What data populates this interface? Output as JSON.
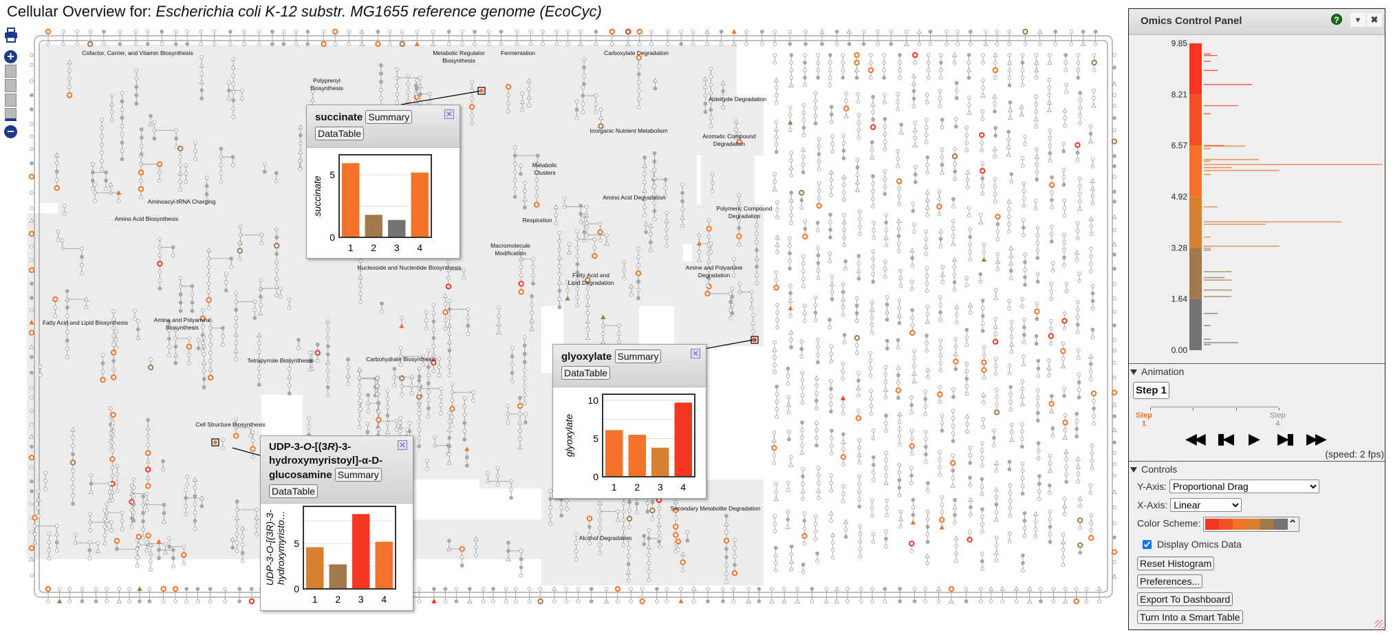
{
  "title": {
    "prefix": "Cellular Overview for: ",
    "organism": "Escherichia coli K-12 substr. MG1655 reference genome (EcoCyc)"
  },
  "zoom_controls": {
    "print_icon": "printer-icon",
    "zoom_in": "+",
    "zoom_out": "−"
  },
  "map": {
    "region_labels": [
      {
        "lines": [
          "Cofactor, Carrier, and Vitamin Biosynthesis"
        ]
      },
      {
        "lines": [
          "Metabolic Regulator",
          "Biosynthesis"
        ]
      },
      {
        "lines": [
          "Polyprenyl",
          "Biosynthesis"
        ]
      },
      {
        "lines": [
          "Fermentation"
        ]
      },
      {
        "lines": [
          "Carboxylate Degradation"
        ]
      },
      {
        "lines": [
          "Aldehyde Degradation"
        ]
      },
      {
        "lines": [
          "Inorganic Nutrient Metabolism"
        ]
      },
      {
        "lines": [
          "Aromatic Compound",
          "Degradation"
        ]
      },
      {
        "lines": [
          "Metabolic",
          "Clusters"
        ]
      },
      {
        "lines": [
          "Aminoacyl-tRNA Charging"
        ]
      },
      {
        "lines": [
          "Amino Acid Biosynthesis"
        ]
      },
      {
        "lines": [
          "Respiration"
        ]
      },
      {
        "lines": [
          "Amino Acid Degradation"
        ]
      },
      {
        "lines": [
          "Polymeric Compound",
          "Degradation"
        ]
      },
      {
        "lines": [
          "Macromolecule",
          "Modification"
        ]
      },
      {
        "lines": [
          "Fatty Acid and",
          "Lipid Degradation"
        ]
      },
      {
        "lines": [
          "Amine and Polyamine",
          "Degradation"
        ]
      },
      {
        "lines": [
          "Amine and Polyamine",
          "Biosynthesis"
        ]
      },
      {
        "lines": [
          "Fatty Acid and Lipid Biosynthesis"
        ]
      },
      {
        "lines": [
          "Tetrapyrrole Biosynthesis"
        ]
      },
      {
        "lines": [
          "Carbohydrate Biosynthesis"
        ]
      },
      {
        "lines": [
          "Cell Structure Biosynthesis"
        ]
      },
      {
        "lines": [
          "Alcohol Degradation"
        ]
      },
      {
        "lines": [
          "Nucleoside and Nucleotide Biosynthesis"
        ]
      },
      {
        "lines": [
          "Secondary Metabolite Degradation"
        ]
      }
    ]
  },
  "popups": [
    {
      "id": "succinate",
      "name": "succinate",
      "summary_label": "Summary",
      "datatable_label": "DataTable",
      "close_icon": "close-icon",
      "chart": {
        "type": "bar",
        "ylabel": "succinate",
        "categories": [
          "1",
          "2",
          "3",
          "4"
        ],
        "values": [
          5.93,
          1.8,
          1.39,
          5.18
        ],
        "ylim": [
          0,
          6.6
        ],
        "yticks": [
          0,
          5
        ],
        "grid": [
          2.5,
          5
        ]
      }
    },
    {
      "id": "glyoxylate",
      "name": "glyoxylate",
      "summary_label": "Summary",
      "datatable_label": "DataTable",
      "close_icon": "close-icon",
      "chart": {
        "type": "bar",
        "ylabel": "glyoxylate",
        "categories": [
          "1",
          "2",
          "3",
          "4"
        ],
        "values": [
          6.1,
          5.5,
          3.8,
          9.7
        ],
        "ylim": [
          0,
          10.8
        ],
        "yticks": [
          0,
          5,
          10
        ],
        "grid": [
          2.5,
          5,
          7.5,
          10
        ]
      }
    },
    {
      "id": "udp",
      "name_parts": [
        "UDP-3-",
        "O",
        "-[(3",
        "R",
        ")-3-hydroxymyristoyl]-α-D-glucosamine"
      ],
      "summary_label": "Summary",
      "datatable_label": "DataTable",
      "close_icon": "close-icon",
      "chart": {
        "type": "bar",
        "ylabel_lines": [
          "UDP-3-O-[(3R)-3-",
          "hydroxymyristo…"
        ],
        "categories": [
          "1",
          "2",
          "3",
          "4"
        ],
        "values": [
          4.6,
          2.7,
          8.25,
          5.2
        ],
        "ylim": [
          0,
          9.1
        ],
        "yticks": [
          0,
          5
        ],
        "grid": [
          2.5,
          5,
          7.5
        ]
      }
    }
  ],
  "omics_panel": {
    "title": "Omics Control Panel",
    "help_icon": "?",
    "collapse_icon": "▾",
    "close_icon": "✖",
    "histogram": {
      "axis_labels": [
        "9.85",
        "8.21",
        "6.57",
        "4.92",
        "3.28",
        "1.64",
        "0.00"
      ],
      "range": [
        0,
        9.85
      ],
      "bins": [
        [
          9.51,
          1
        ],
        [
          9.46,
          2
        ],
        [
          9.27,
          1
        ],
        [
          8.98,
          2
        ],
        [
          8.53,
          7
        ],
        [
          7.85,
          5
        ],
        [
          7.59,
          1
        ],
        [
          6.57,
          3
        ],
        [
          6.55,
          6
        ],
        [
          6.47,
          1
        ],
        [
          6.12,
          8
        ],
        [
          6.07,
          1
        ],
        [
          5.96,
          26
        ],
        [
          5.86,
          4
        ],
        [
          5.77,
          11
        ],
        [
          5.64,
          1
        ],
        [
          4.6,
          2
        ],
        [
          4.12,
          20
        ],
        [
          4.04,
          9
        ],
        [
          3.63,
          1
        ],
        [
          3.34,
          11
        ],
        [
          3.27,
          1
        ],
        [
          3.21,
          1
        ],
        [
          2.52,
          4
        ],
        [
          2.33,
          3
        ],
        [
          2.25,
          4
        ],
        [
          1.93,
          4
        ],
        [
          1.72,
          4
        ],
        [
          1.18,
          2
        ],
        [
          0.79,
          1
        ],
        [
          0.35,
          1
        ],
        [
          0.24,
          5
        ],
        [
          0.18,
          1
        ]
      ]
    },
    "animation": {
      "header": "Animation",
      "current_step": "Step 1",
      "start_label": [
        "Step",
        "1"
      ],
      "end_label": [
        "Step",
        "4"
      ],
      "steps": 4,
      "current": 1,
      "speed": "(speed: 2 fps)",
      "buttons": [
        "◀◀",
        "▮◀",
        "▶",
        "▶▮",
        "▶▶"
      ]
    },
    "controls": {
      "header": "Controls",
      "y_axis_label": "Y-Axis:",
      "y_axis_value": "Proportional Drag",
      "x_axis_label": "X-Axis:",
      "x_axis_value": "Linear",
      "color_scheme_label": "Color Scheme:",
      "display_omics_label": "Display Omics Data",
      "display_omics_checked": true,
      "buttons": [
        "Reset Histogram",
        "Preferences...",
        "Export To Dashboard",
        "Turn Into a Smart Table"
      ]
    }
  },
  "colors": {
    "scheme": [
      "#f53522",
      "#f25025",
      "#f47328",
      "#d98030",
      "#a0784a",
      "#737373"
    ],
    "thresholds": [
      8.21,
      6.57,
      4.92,
      3.28,
      1.64
    ],
    "map_region": "#ececec",
    "map_line": "#9a9a9a"
  }
}
